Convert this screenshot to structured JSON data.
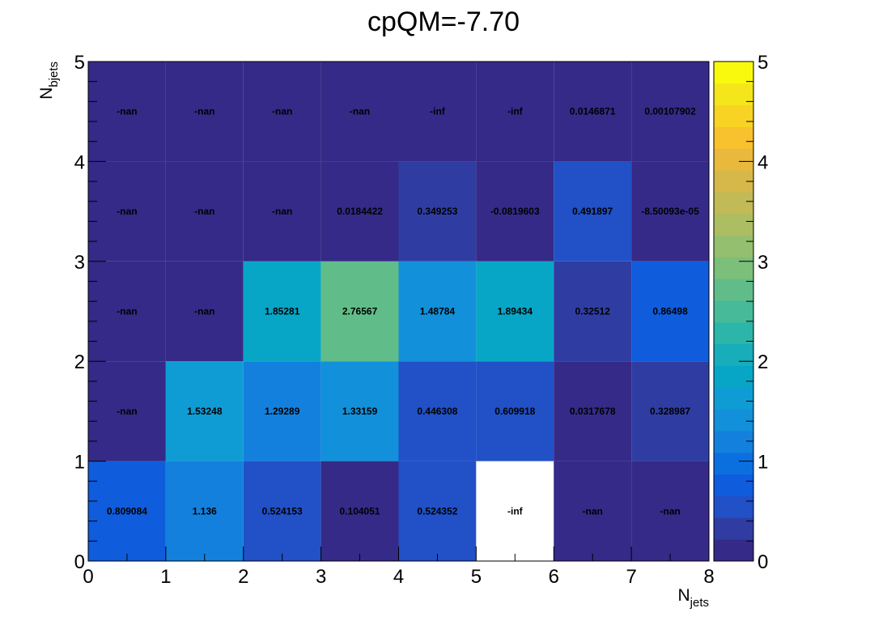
{
  "chart_data": {
    "type": "heatmap",
    "title": "cpQM=-7.70",
    "xlabel": {
      "main": "N",
      "sub": "jets"
    },
    "ylabel": {
      "main": "N",
      "sub": "bjets"
    },
    "xlim": [
      0,
      8
    ],
    "ylim": [
      0,
      5
    ],
    "x_ticks": [
      "0",
      "1",
      "2",
      "3",
      "4",
      "5",
      "6",
      "7",
      "8"
    ],
    "y_ticks": [
      "0",
      "1",
      "2",
      "3",
      "4",
      "5"
    ],
    "colorbar": {
      "min": 0,
      "max": 5,
      "ticks": [
        "0",
        "1",
        "2",
        "3",
        "4",
        "5"
      ]
    },
    "rows": [
      {
        "y_bin": [
          0,
          1
        ],
        "cells": [
          {
            "label": "0.809084",
            "value": 0.809084
          },
          {
            "label": "1.136",
            "value": 1.136
          },
          {
            "label": "0.524153",
            "value": 0.524153
          },
          {
            "label": "0.104051",
            "value": 0.104051
          },
          {
            "label": "0.524352",
            "value": 0.524352
          },
          {
            "label": "-inf",
            "value": null,
            "fill": "white"
          },
          {
            "label": "-nan",
            "value": null
          },
          {
            "label": "-nan",
            "value": null
          }
        ]
      },
      {
        "y_bin": [
          1,
          2
        ],
        "cells": [
          {
            "label": "-nan",
            "value": null
          },
          {
            "label": "1.53248",
            "value": 1.53248
          },
          {
            "label": "1.29289",
            "value": 1.29289
          },
          {
            "label": "1.33159",
            "value": 1.33159
          },
          {
            "label": "0.446308",
            "value": 0.446308
          },
          {
            "label": "0.609918",
            "value": 0.609918
          },
          {
            "label": "0.0317678",
            "value": 0.0317678
          },
          {
            "label": "0.328987",
            "value": 0.328987
          }
        ]
      },
      {
        "y_bin": [
          2,
          3
        ],
        "cells": [
          {
            "label": "-nan",
            "value": null
          },
          {
            "label": "-nan",
            "value": null
          },
          {
            "label": "1.85281",
            "value": 1.85281
          },
          {
            "label": "2.76567",
            "value": 2.76567
          },
          {
            "label": "1.48784",
            "value": 1.48784
          },
          {
            "label": "1.89434",
            "value": 1.89434
          },
          {
            "label": "0.32512",
            "value": 0.32512
          },
          {
            "label": "0.86498",
            "value": 0.86498
          }
        ]
      },
      {
        "y_bin": [
          3,
          4
        ],
        "cells": [
          {
            "label": "-nan",
            "value": null
          },
          {
            "label": "-nan",
            "value": null
          },
          {
            "label": "-nan",
            "value": null
          },
          {
            "label": "0.0184422",
            "value": 0.0184422
          },
          {
            "label": "0.349253",
            "value": 0.349253
          },
          {
            "label": "-0.0819603",
            "value": -0.0819603
          },
          {
            "label": "0.491897",
            "value": 0.491897
          },
          {
            "label": "-8.50093e-05",
            "value": -8.50093e-05
          }
        ]
      },
      {
        "y_bin": [
          4,
          5
        ],
        "cells": [
          {
            "label": "-nan",
            "value": null
          },
          {
            "label": "-nan",
            "value": null
          },
          {
            "label": "-nan",
            "value": null
          },
          {
            "label": "-nan",
            "value": null
          },
          {
            "label": "-inf",
            "value": null
          },
          {
            "label": "-inf",
            "value": null
          },
          {
            "label": "0.0146871",
            "value": 0.0146871
          },
          {
            "label": "0.00107902",
            "value": 0.00107902
          }
        ]
      }
    ]
  },
  "colors": {
    "palette": [
      "#352a87",
      "#2f3da2",
      "#2150c7",
      "#0f5cdd",
      "#0b6fe0",
      "#1380dd",
      "#1290d9",
      "#0f9cd4",
      "#08a6c6",
      "#17adba",
      "#2cb5a9",
      "#47ba99",
      "#60bd89",
      "#7bbf7b",
      "#94bf6e",
      "#acbd62",
      "#c2ba56",
      "#d6b84a",
      "#e8b93c",
      "#f8c12e",
      "#f8d323",
      "#f5e51b",
      "#f9f90e"
    ],
    "white_cell": "#ffffff",
    "frame": "#000000"
  }
}
